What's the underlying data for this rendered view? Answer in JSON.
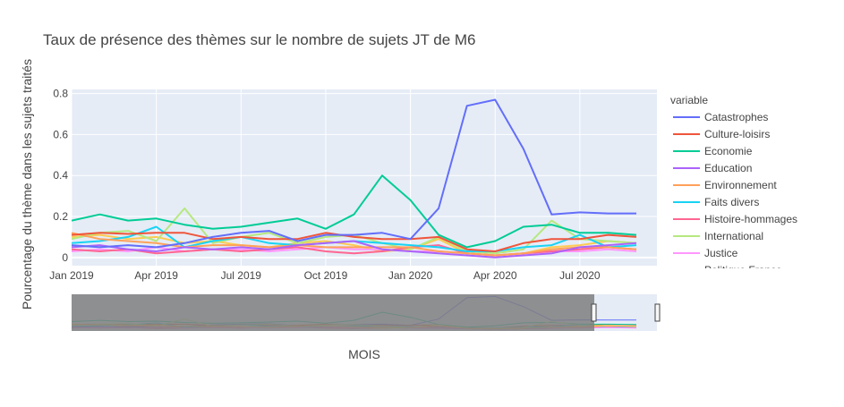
{
  "chart_data": {
    "type": "line",
    "title": "Taux de présence des thèmes sur le nombre de sujets JT de M6",
    "xlabel": "MOIS",
    "ylabel": "Pourcentage du thème dans les sujets traités",
    "ylim": [
      -0.04,
      0.82
    ],
    "y_ticks": [
      0,
      0.2,
      0.4,
      0.6,
      0.8
    ],
    "y_tick_labels": [
      "0",
      "0.2",
      "0.4",
      "0.6",
      "0.8"
    ],
    "x_ticks": [
      "2019-01",
      "2019-04",
      "2019-07",
      "2019-10",
      "2020-01",
      "2020-04",
      "2020-07"
    ],
    "x_tick_labels": [
      "Jan 2019",
      "Apr 2019",
      "Jul 2019",
      "Oct 2019",
      "Jan 2020",
      "Apr 2020",
      "Jul 2020"
    ],
    "x": [
      "2019-01",
      "2019-02",
      "2019-03",
      "2019-04",
      "2019-05",
      "2019-06",
      "2019-07",
      "2019-08",
      "2019-09",
      "2019-10",
      "2019-11",
      "2019-12",
      "2020-01",
      "2020-02",
      "2020-03",
      "2020-04",
      "2020-05",
      "2020-06",
      "2020-07",
      "2020-08",
      "2020-09"
    ],
    "grid": true,
    "legend_title": "variable",
    "legend_position": "right",
    "rangeslider": true,
    "series": [
      {
        "name": "Catastrophes",
        "color": "#636efa",
        "values": [
          0.06,
          0.05,
          0.06,
          0.05,
          0.07,
          0.1,
          0.12,
          0.13,
          0.08,
          0.11,
          0.11,
          0.12,
          0.09,
          0.24,
          0.74,
          0.77,
          0.53,
          0.21,
          0.22,
          0.215,
          0.215
        ]
      },
      {
        "name": "Culture-loisirs",
        "color": "#EF553B",
        "values": [
          0.11,
          0.12,
          0.115,
          0.12,
          0.12,
          0.09,
          0.1,
          0.09,
          0.09,
          0.12,
          0.1,
          0.09,
          0.09,
          0.1,
          0.04,
          0.03,
          0.07,
          0.09,
          0.09,
          0.11,
          0.1
        ]
      },
      {
        "name": "Economie",
        "color": "#00cc96",
        "values": [
          0.18,
          0.21,
          0.18,
          0.19,
          0.16,
          0.14,
          0.15,
          0.17,
          0.19,
          0.14,
          0.21,
          0.4,
          0.28,
          0.11,
          0.05,
          0.08,
          0.15,
          0.16,
          0.12,
          0.12,
          0.11
        ]
      },
      {
        "name": "Education",
        "color": "#ab63fa",
        "values": [
          0.05,
          0.06,
          0.04,
          0.03,
          0.05,
          0.04,
          0.05,
          0.04,
          0.06,
          0.07,
          0.08,
          0.04,
          0.03,
          0.02,
          0.01,
          0.0,
          0.01,
          0.02,
          0.05,
          0.06,
          0.07
        ]
      },
      {
        "name": "Environnement",
        "color": "#FFA15A",
        "values": [
          0.12,
          0.09,
          0.08,
          0.07,
          0.05,
          0.06,
          0.06,
          0.05,
          0.06,
          0.05,
          0.05,
          0.05,
          0.05,
          0.03,
          0.02,
          0.01,
          0.02,
          0.04,
          0.05,
          0.05,
          0.04
        ]
      },
      {
        "name": "Faits divers",
        "color": "#19d3f3",
        "values": [
          0.07,
          0.08,
          0.1,
          0.15,
          0.05,
          0.08,
          0.1,
          0.07,
          0.06,
          0.07,
          0.08,
          0.07,
          0.06,
          0.05,
          0.03,
          0.03,
          0.05,
          0.06,
          0.11,
          0.05,
          0.06
        ]
      },
      {
        "name": "Histoire-hommages",
        "color": "#FF6692",
        "values": [
          0.04,
          0.03,
          0.04,
          0.02,
          0.03,
          0.04,
          0.03,
          0.04,
          0.05,
          0.03,
          0.02,
          0.03,
          0.05,
          0.06,
          0.02,
          0.01,
          0.02,
          0.03,
          0.04,
          0.05,
          0.04
        ]
      },
      {
        "name": "International",
        "color": "#B6E880",
        "values": [
          0.09,
          0.12,
          0.13,
          0.08,
          0.24,
          0.07,
          0.1,
          0.12,
          0.07,
          0.1,
          0.11,
          0.07,
          0.04,
          0.1,
          0.03,
          0.02,
          0.04,
          0.18,
          0.09,
          0.08,
          0.07
        ]
      },
      {
        "name": "Justice",
        "color": "#FF97FF",
        "values": [
          0.03,
          0.04,
          0.03,
          0.05,
          0.03,
          0.04,
          0.04,
          0.03,
          0.04,
          0.05,
          0.04,
          0.04,
          0.03,
          0.03,
          0.02,
          0.01,
          0.02,
          0.03,
          0.03,
          0.04,
          0.03
        ]
      },
      {
        "name": "Politique France",
        "color": "#FECB52",
        "values": [
          0.1,
          0.11,
          0.09,
          0.1,
          0.07,
          0.08,
          0.06,
          0.05,
          0.07,
          0.08,
          0.06,
          0.03,
          0.04,
          0.09,
          0.02,
          0.01,
          0.02,
          0.05,
          0.06,
          0.08,
          0.07
        ]
      }
    ]
  }
}
